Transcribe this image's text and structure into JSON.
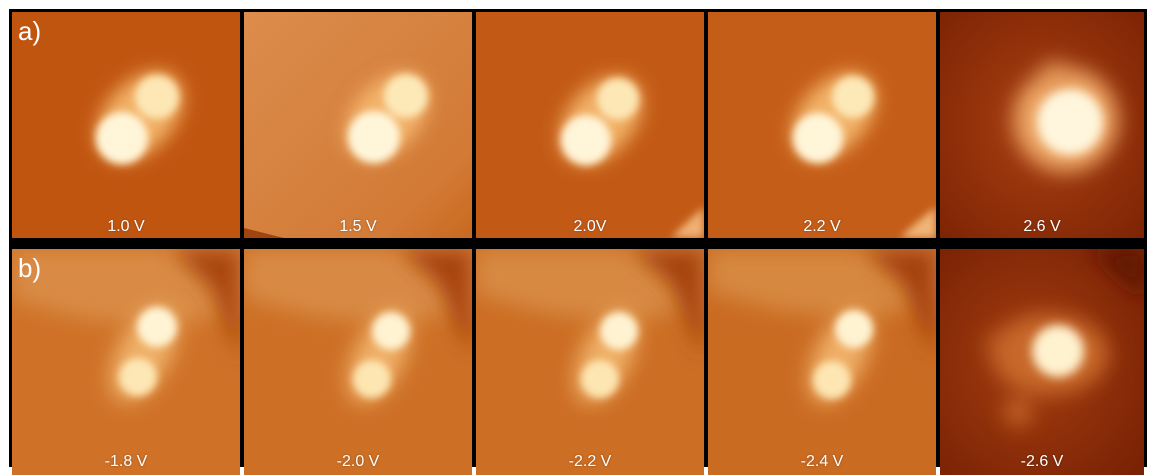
{
  "figure": {
    "rows": [
      {
        "label": "a)",
        "voltages": [
          "1.0 V",
          "1.5 V",
          "2.0V",
          "2.2 V",
          "2.6 V"
        ]
      },
      {
        "label": "b)",
        "voltages": [
          "-1.8 V",
          "-2.0 V",
          "-2.2 V",
          "-2.4 V",
          "-2.6 V"
        ]
      }
    ],
    "colors": {
      "background": "#c35a12",
      "background_light": "#d9823f",
      "background_dark": "#8a2c05",
      "molecule_core": "#fffbe8",
      "divider": "#000000"
    }
  }
}
